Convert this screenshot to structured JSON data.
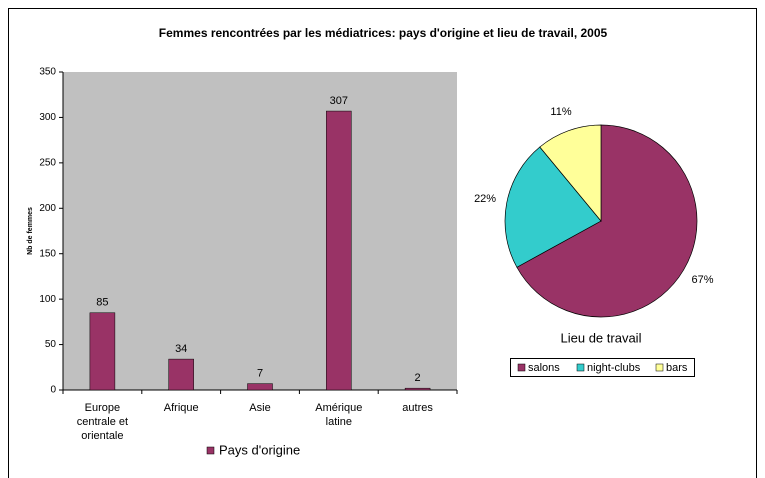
{
  "title": "Femmes rencontrées par les médiatrices: pays d'origine et lieu de travail, 2005",
  "chart_data": [
    {
      "type": "bar",
      "categories": [
        "Europe centrale et orientale",
        "Afrique",
        "Asie",
        "Amérique latine",
        "autres"
      ],
      "series": [
        {
          "name": "Pays d'origine",
          "color": "#993366",
          "values": [
            85,
            34,
            7,
            307,
            2
          ]
        }
      ],
      "ylabel": "Nb de femmes",
      "ylim": [
        0,
        350
      ],
      "yticks": [
        0,
        50,
        100,
        150,
        200,
        250,
        300,
        350
      ],
      "legend": "bottom"
    },
    {
      "type": "pie",
      "title": "Lieu de travail",
      "categories": [
        "salons",
        "night-clubs",
        "bars"
      ],
      "values": [
        67,
        22,
        11
      ],
      "value_labels": [
        "67%",
        "22%",
        "11%"
      ],
      "colors": [
        "#993366",
        "#33cccc",
        "#ffff99"
      ],
      "legend": "bottom"
    }
  ]
}
